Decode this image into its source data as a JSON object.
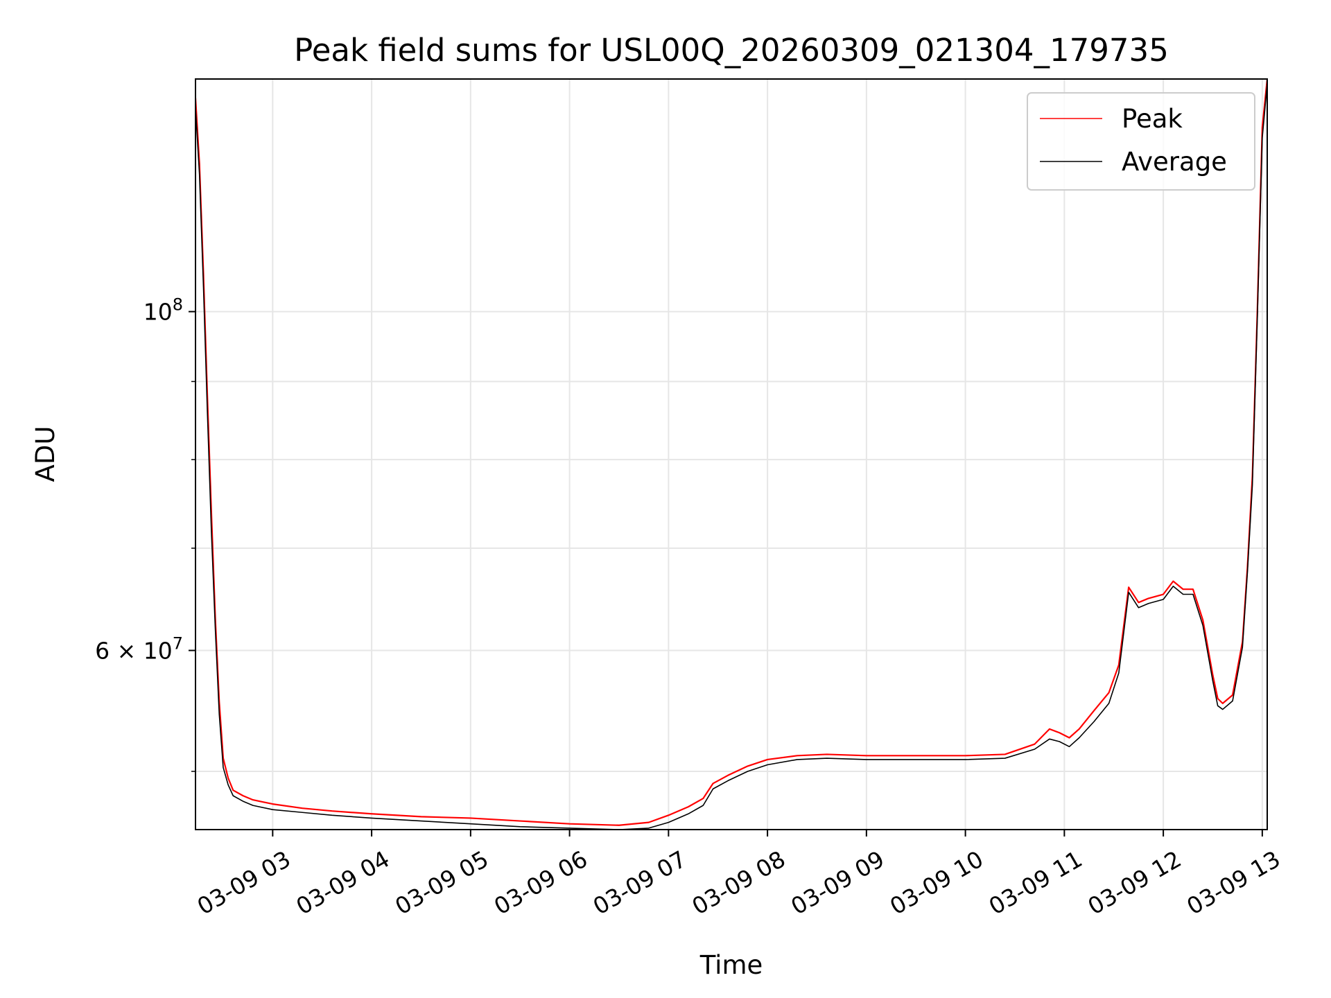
{
  "chart_data": {
    "type": "line",
    "title": "Peak field sums for USL00Q_20260309_021304_179735",
    "xlabel": "Time",
    "ylabel": "ADU",
    "yscale": "log",
    "grid": true,
    "legend_position": "top-right",
    "xlim": [
      2.22,
      13.05
    ],
    "ylim": [
      45800000,
      142000000
    ],
    "x_ticks": [
      {
        "value": 3,
        "label": "03-09 03"
      },
      {
        "value": 4,
        "label": "03-09 04"
      },
      {
        "value": 5,
        "label": "03-09 05"
      },
      {
        "value": 6,
        "label": "03-09 06"
      },
      {
        "value": 7,
        "label": "03-09 07"
      },
      {
        "value": 8,
        "label": "03-09 08"
      },
      {
        "value": 9,
        "label": "03-09 09"
      },
      {
        "value": 10,
        "label": "03-09 10"
      },
      {
        "value": 11,
        "label": "03-09 11"
      },
      {
        "value": 12,
        "label": "03-09 12"
      },
      {
        "value": 13,
        "label": "03-09 13"
      }
    ],
    "y_major_ticks": [
      {
        "value": 60000000,
        "base": "6 × 10",
        "exp": "7"
      },
      {
        "value": 100000000,
        "base": "10",
        "exp": "8"
      }
    ],
    "y_minor_ticks": [
      50000000,
      70000000,
      80000000,
      90000000
    ],
    "series": [
      {
        "name": "Peak",
        "color": "#ff0000",
        "x": [
          2.22,
          2.26,
          2.3,
          2.34,
          2.38,
          2.42,
          2.46,
          2.5,
          2.55,
          2.6,
          2.7,
          2.8,
          3.0,
          3.3,
          3.6,
          4.0,
          4.5,
          5.0,
          5.5,
          6.0,
          6.5,
          6.8,
          7.0,
          7.2,
          7.35,
          7.45,
          7.6,
          7.8,
          8.0,
          8.3,
          8.6,
          9.0,
          9.5,
          10.0,
          10.4,
          10.7,
          10.85,
          10.95,
          11.05,
          11.15,
          11.3,
          11.45,
          11.55,
          11.65,
          11.75,
          11.85,
          12.0,
          12.1,
          12.2,
          12.3,
          12.4,
          12.5,
          12.55,
          12.6,
          12.7,
          12.8,
          12.85,
          12.9,
          12.95,
          13.0,
          13.05
        ],
        "y": [
          138000000,
          125000000,
          106000000,
          88000000,
          74000000,
          63000000,
          55500000,
          51000000,
          49500000,
          48600000,
          48200000,
          47900000,
          47600000,
          47300000,
          47100000,
          46900000,
          46700000,
          46600000,
          46400000,
          46200000,
          46100000,
          46300000,
          46800000,
          47400000,
          48000000,
          49100000,
          49700000,
          50400000,
          50900000,
          51200000,
          51300000,
          51200000,
          51200000,
          51200000,
          51300000,
          52100000,
          53300000,
          53000000,
          52600000,
          53300000,
          54800000,
          56300000,
          58700000,
          66000000,
          64500000,
          64900000,
          65300000,
          66600000,
          65800000,
          65800000,
          62800000,
          57800000,
          55800000,
          55400000,
          56100000,
          60800000,
          68000000,
          78000000,
          100000000,
          132000000,
          142000000
        ]
      },
      {
        "name": "Average",
        "color": "#000000",
        "x": [
          2.22,
          2.26,
          2.3,
          2.34,
          2.38,
          2.42,
          2.46,
          2.5,
          2.55,
          2.6,
          2.7,
          2.8,
          3.0,
          3.3,
          3.6,
          4.0,
          4.5,
          5.0,
          5.5,
          6.0,
          6.5,
          6.8,
          7.0,
          7.2,
          7.35,
          7.45,
          7.6,
          7.8,
          8.0,
          8.3,
          8.6,
          9.0,
          9.5,
          10.0,
          10.4,
          10.7,
          10.85,
          10.95,
          11.05,
          11.15,
          11.3,
          11.45,
          11.55,
          11.65,
          11.75,
          11.85,
          12.0,
          12.1,
          12.2,
          12.3,
          12.4,
          12.5,
          12.55,
          12.6,
          12.7,
          12.8,
          12.85,
          12.9,
          12.95,
          13.0,
          13.05
        ],
        "y": [
          136000000,
          123000000,
          104000000,
          86000000,
          72000000,
          62000000,
          54500000,
          50300000,
          49000000,
          48200000,
          47800000,
          47500000,
          47200000,
          47000000,
          46800000,
          46600000,
          46400000,
          46200000,
          46000000,
          45900000,
          45800000,
          45900000,
          46300000,
          46900000,
          47500000,
          48700000,
          49300000,
          50000000,
          50500000,
          50900000,
          51000000,
          50900000,
          50900000,
          50900000,
          51000000,
          51700000,
          52500000,
          52300000,
          51900000,
          52600000,
          53900000,
          55400000,
          58000000,
          65500000,
          64000000,
          64400000,
          64800000,
          66100000,
          65300000,
          65300000,
          62300000,
          57300000,
          55200000,
          54900000,
          55600000,
          60300000,
          67500000,
          77000000,
          99000000,
          130000000,
          141000000
        ]
      }
    ]
  }
}
